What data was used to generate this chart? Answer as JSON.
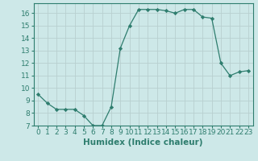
{
  "x": [
    0,
    1,
    2,
    3,
    4,
    5,
    6,
    7,
    8,
    9,
    10,
    11,
    12,
    13,
    14,
    15,
    16,
    17,
    18,
    19,
    20,
    21,
    22,
    23
  ],
  "y": [
    9.5,
    8.8,
    8.3,
    8.3,
    8.3,
    7.8,
    7.0,
    7.0,
    8.5,
    13.2,
    15.0,
    16.3,
    16.3,
    16.3,
    16.2,
    16.0,
    16.3,
    16.3,
    15.7,
    15.6,
    12.0,
    11.0,
    11.3,
    11.4
  ],
  "xlabel": "Humidex (Indice chaleur)",
  "ylim": [
    7,
    16.8
  ],
  "xlim": [
    -0.5,
    23.5
  ],
  "yticks": [
    7,
    8,
    9,
    10,
    11,
    12,
    13,
    14,
    15,
    16
  ],
  "xticks": [
    0,
    1,
    2,
    3,
    4,
    5,
    6,
    7,
    8,
    9,
    10,
    11,
    12,
    13,
    14,
    15,
    16,
    17,
    18,
    19,
    20,
    21,
    22,
    23
  ],
  "line_color": "#2e7d6e",
  "marker": "D",
  "marker_size": 2.2,
  "bg_color": "#cde8e8",
  "grid_color": "#b8d0d0",
  "tick_label_fontsize": 6.5,
  "xlabel_fontsize": 7.5
}
